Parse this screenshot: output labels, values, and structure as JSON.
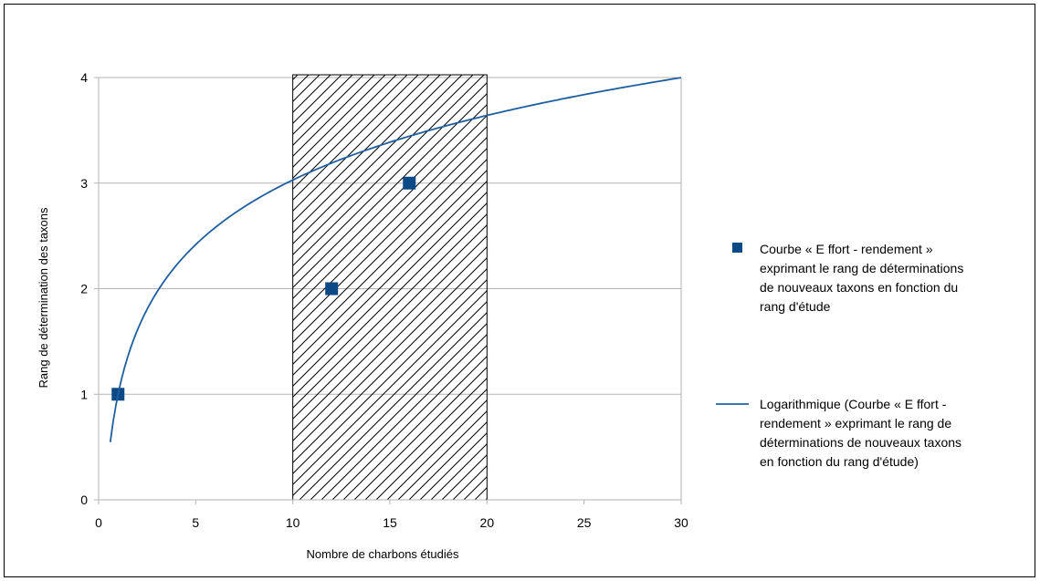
{
  "chart_data": {
    "type": "scatter",
    "title": "",
    "xlabel": "Nombre de charbons étudiés",
    "ylabel": "Rang de détermination des  taxons",
    "xlim": [
      0,
      30
    ],
    "ylim": [
      0,
      4
    ],
    "xticks": [
      "0",
      "5",
      "10",
      "15",
      "20",
      "25",
      "30"
    ],
    "yticks": [
      "0",
      "1",
      "2",
      "3",
      "4"
    ],
    "grid": "horizontal",
    "legend_position": "right",
    "highlight_region": {
      "x_from": 10,
      "x_to": 20,
      "pattern": "diagonal-hatch"
    },
    "series": [
      {
        "name_lines": [
          "Courbe « E ffort - rendement »",
          "exprimant le rang de déterminations",
          "de nouveaux taxons en fonction du",
          "rang d'étude"
        ],
        "kind": "points",
        "marker": "square",
        "color": "#0b4a86",
        "points": [
          {
            "x": 1,
            "y": 1
          },
          {
            "x": 12,
            "y": 2
          },
          {
            "x": 16,
            "y": 3
          }
        ]
      },
      {
        "name_lines": [
          "Logarithmique (Courbe « E ffort -",
          "rendement » exprimant le rang de",
          "déterminations de nouveaux taxons",
          "en fonction du rang d'étude)"
        ],
        "kind": "logarithmic-trendline",
        "color": "#1f5fa0",
        "equation": {
          "a": 0.8824,
          "b": 0.9975
        },
        "x_from": 0.6,
        "x_to": 30
      }
    ]
  }
}
